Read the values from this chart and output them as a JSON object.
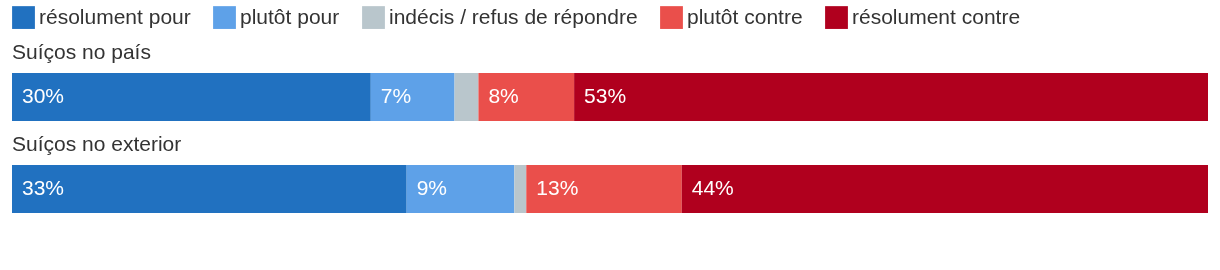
{
  "chart_data": {
    "type": "bar",
    "orientation": "horizontal",
    "stacked": true,
    "legend": "top",
    "categories": [
      "Suíços no país",
      "Suíços no exterior"
    ],
    "series": [
      {
        "name": "résolument pour",
        "color": "#2171c0",
        "values": [
          30,
          33
        ],
        "value_labels": [
          "30%",
          "33%"
        ]
      },
      {
        "name": "plutôt pour",
        "color": "#5ea1e8",
        "values": [
          7,
          9
        ],
        "value_labels": [
          "7%",
          "9%"
        ]
      },
      {
        "name": "indécis / refus de répondre",
        "color": "#b9c6cc",
        "values": [
          2,
          1
        ],
        "value_labels": [
          null,
          null
        ]
      },
      {
        "name": "plutôt contre",
        "color": "#ea4f4b",
        "values": [
          8,
          13
        ],
        "value_labels": [
          "8%",
          "13%"
        ]
      },
      {
        "name": "résolument contre",
        "color": "#b0001e",
        "values": [
          53,
          44
        ],
        "value_labels": [
          "53%",
          "44%"
        ]
      }
    ]
  }
}
